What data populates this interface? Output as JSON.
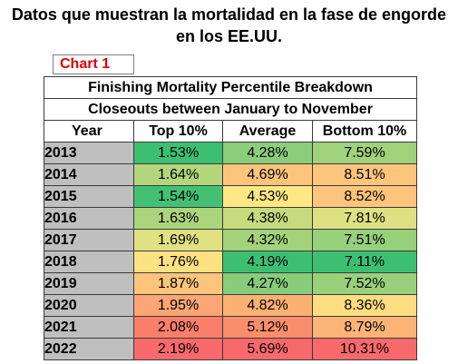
{
  "caption": "Datos que muestran la mortalidad en la fase de engorde en los EE.UU.",
  "chart_label": "Chart 1",
  "chart_data": {
    "type": "table",
    "title": "Finishing Mortality Percentile Breakdown",
    "subtitle": "Closeouts between January to November",
    "columns": [
      "Year",
      "Top 10%",
      "Average",
      "Bottom 10%"
    ],
    "rows": [
      {
        "year": "2013",
        "top": "1.53%",
        "avg": "4.28%",
        "bottom": "7.59%"
      },
      {
        "year": "2014",
        "top": "1.64%",
        "avg": "4.69%",
        "bottom": "8.51%"
      },
      {
        "year": "2015",
        "top": "1.54%",
        "avg": "4.53%",
        "bottom": "8.52%"
      },
      {
        "year": "2016",
        "top": "1.63%",
        "avg": "4.38%",
        "bottom": "7.81%"
      },
      {
        "year": "2017",
        "top": "1.69%",
        "avg": "4.32%",
        "bottom": "7.51%"
      },
      {
        "year": "2018",
        "top": "1.76%",
        "avg": "4.19%",
        "bottom": "7.11%"
      },
      {
        "year": "2019",
        "top": "1.87%",
        "avg": "4.27%",
        "bottom": "7.52%"
      },
      {
        "year": "2020",
        "top": "1.95%",
        "avg": "4.82%",
        "bottom": "8.36%"
      },
      {
        "year": "2021",
        "top": "2.08%",
        "avg": "5.12%",
        "bottom": "8.79%"
      },
      {
        "year": "2022",
        "top": "2.19%",
        "avg": "5.69%",
        "bottom": "10.31%"
      }
    ],
    "cell_colors": {
      "top": [
        "#3cbf72",
        "#b3d67d",
        "#42c174",
        "#abd47c",
        "#dfe182",
        "#fee183",
        "#fdc57c",
        "#fba674",
        "#f97f6b",
        "#f8696b"
      ],
      "avg": [
        "#8ccd7b",
        "#fdc57c",
        "#fee883",
        "#c7db7e",
        "#a3d27b",
        "#3dbf73",
        "#86cc7a",
        "#fbb074",
        "#f98e6d",
        "#f8696b"
      ],
      "bottom": [
        "#a0d17b",
        "#fdc57c",
        "#fdc47b",
        "#dee182",
        "#97cf7a",
        "#3cbf72",
        "#9ad07b",
        "#fedd81",
        "#fbb475",
        "#f8696b"
      ]
    }
  }
}
